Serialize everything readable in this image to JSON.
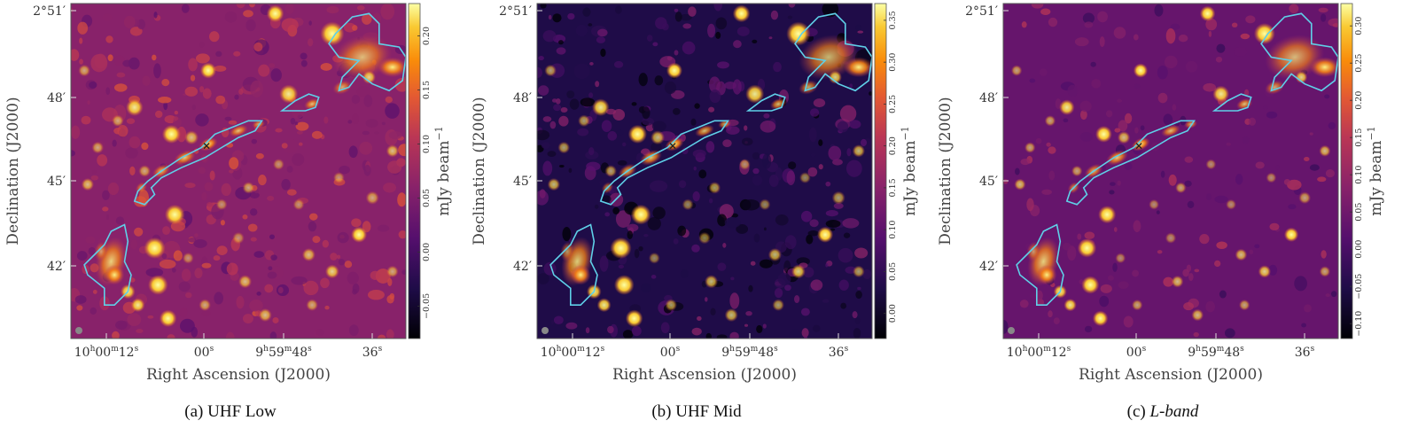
{
  "figure": {
    "panels": [
      {
        "id": "a",
        "caption": "(a) UHF Low",
        "caption_letter": "(a)",
        "caption_name": "UHF Low",
        "caption_italic": false,
        "colormap": "inferno",
        "colorbar_label": "mJy beam",
        "colorbar_exponent": "−1",
        "colorbar_ticks": [
          "−0.05",
          "0.00",
          "0.05",
          "0.10",
          "0.15",
          "0.20"
        ],
        "colorbar_min": -0.08,
        "colorbar_max": 0.23,
        "background_level": 0.45
      },
      {
        "id": "b",
        "caption": "(b) UHF Mid",
        "caption_letter": "(b)",
        "caption_name": "UHF Mid",
        "caption_italic": false,
        "colormap": "inferno",
        "colorbar_label": "mJy beam",
        "colorbar_exponent": "−1",
        "colorbar_ticks": [
          "0.00",
          "0.05",
          "0.10",
          "0.15",
          "0.20",
          "0.25",
          "0.30",
          "0.35"
        ],
        "colorbar_min": -0.03,
        "colorbar_max": 0.37,
        "background_level": 0.15
      },
      {
        "id": "c",
        "caption": "(c) L-band",
        "caption_letter": "(c)",
        "caption_name": "L-band",
        "caption_italic": true,
        "colormap": "inferno",
        "colorbar_label": "mJy beam",
        "colorbar_exponent": "−1",
        "colorbar_ticks": [
          "−0.10",
          "−0.05",
          "0.00",
          "0.05",
          "0.10",
          "0.15",
          "0.20",
          "0.25",
          "0.30"
        ],
        "colorbar_min": -0.12,
        "colorbar_max": 0.33,
        "background_level": 0.35
      }
    ],
    "axes": {
      "xlabel": "Right Ascension (J2000)",
      "ylabel": "Declination (J2000)",
      "x_ticks": [
        {
          "h": "10",
          "hs": "h",
          "m": "00",
          "ms": "m",
          "s": "12",
          "ss": "s"
        },
        {
          "h": "",
          "hs": "",
          "m": "",
          "ms": "",
          "s": "00",
          "ss": "s"
        },
        {
          "h": "9",
          "hs": "h",
          "m": "59",
          "ms": "m",
          "s": "48",
          "ss": "s"
        },
        {
          "h": "",
          "hs": "",
          "m": "",
          "ms": "",
          "s": "36",
          "ss": "s"
        }
      ],
      "y_ticks": [
        "2°51′",
        "48′",
        "45′",
        "42′"
      ]
    },
    "colors": {
      "contour": "#5fd0e8",
      "frame": "#555555"
    }
  }
}
